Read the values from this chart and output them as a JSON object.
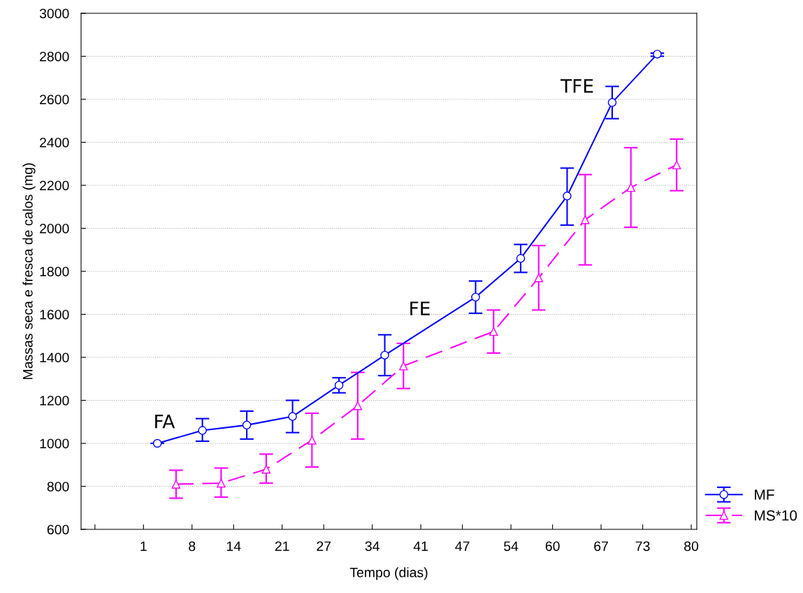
{
  "chart_data": {
    "type": "line",
    "xlabel": "Tempo (dias)",
    "ylabel": "Massas seca e fresca de calos (mg)",
    "xlim": [
      -8,
      80.8
    ],
    "xticks": [
      {
        "value": -6,
        "label": null
      },
      1,
      8,
      14,
      21,
      27,
      34,
      41,
      47,
      54,
      60,
      67,
      73,
      80
    ],
    "ylim": [
      600,
      3000
    ],
    "yticks": [
      600,
      800,
      1000,
      1200,
      1400,
      1600,
      1800,
      2000,
      2200,
      2400,
      2600,
      2800,
      3000
    ],
    "grid": "y",
    "legend": "bottom right",
    "series": [
      {
        "name": "MF",
        "color": "#0000ff",
        "marker": "circle",
        "line_style": "solid",
        "x": [
          3.0,
          9.5,
          15.9,
          22.5,
          29.2,
          35.8,
          48.9,
          55.4,
          62.1,
          68.6,
          75.1
        ],
        "values": [
          1000,
          1060,
          1085,
          1125,
          1270,
          1410,
          1680,
          1860,
          2150,
          2585,
          2810
        ],
        "errors": [
          null,
          [
            1010,
            1115
          ],
          [
            1020,
            1150
          ],
          [
            1050,
            1200
          ],
          [
            1235,
            1305
          ],
          [
            1315,
            1505
          ],
          [
            1605,
            1755
          ],
          [
            1795,
            1925
          ],
          [
            2015,
            2280
          ],
          [
            2510,
            2660
          ],
          [
            2800,
            2815
          ]
        ]
      },
      {
        "name": "MS*10",
        "color": "#ff00ff",
        "marker": "triangle",
        "line_style": "dashed",
        "x": [
          5.7,
          12.2,
          18.7,
          25.3,
          31.9,
          38.5,
          51.5,
          58.0,
          64.7,
          71.3,
          77.9
        ],
        "values": [
          810,
          815,
          880,
          1015,
          1175,
          1360,
          1520,
          1770,
          2040,
          2190,
          2295
        ],
        "errors": [
          [
            745,
            875
          ],
          [
            750,
            885
          ],
          [
            815,
            950
          ],
          [
            890,
            1140
          ],
          [
            1020,
            1330
          ],
          [
            1255,
            1465
          ],
          [
            1420,
            1620
          ],
          [
            1620,
            1920
          ],
          [
            1830,
            2250
          ],
          [
            2005,
            2375
          ],
          [
            2175,
            2415
          ]
        ]
      }
    ],
    "annotations": [
      "FA",
      "FE",
      "TFE"
    ]
  }
}
